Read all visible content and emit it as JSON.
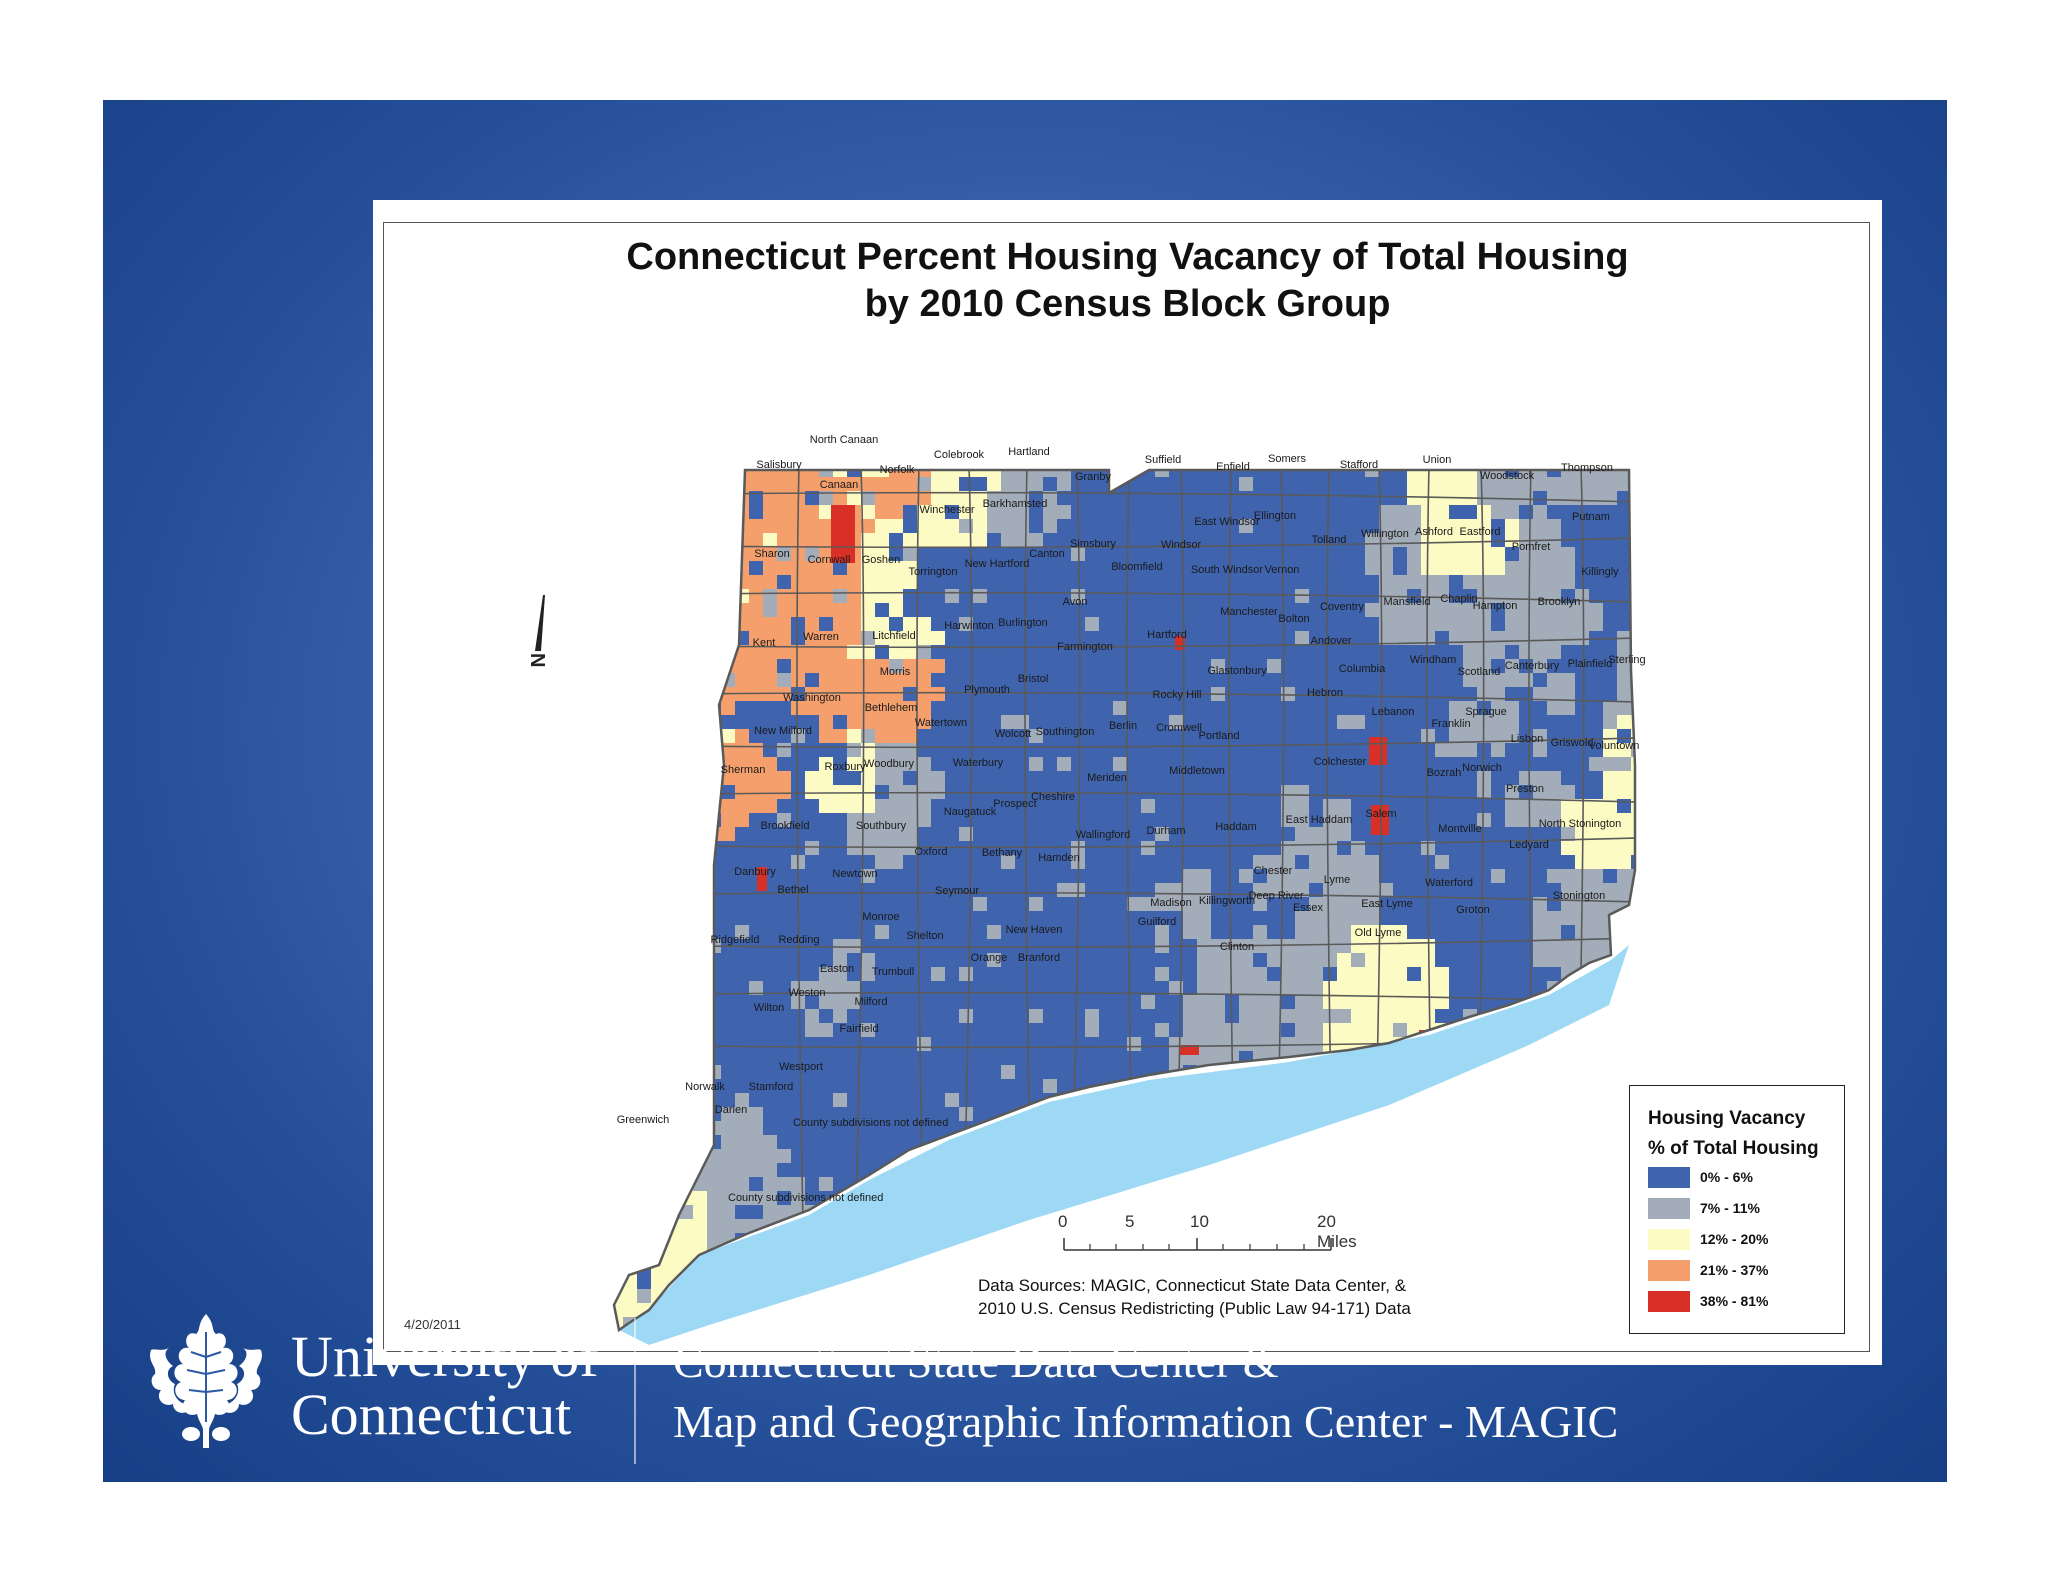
{
  "map": {
    "title_line1": "Connecticut Percent Housing Vacancy of Total Housing",
    "title_line2": "by 2010 Census Block Group",
    "north_label": "N",
    "date": "4/20/2011",
    "undefined_note": "County subdivisions not defined",
    "data_sources_line1": "Data Sources: MAGIC, Connecticut State Data Center, &",
    "data_sources_line2": "2010 U.S. Census Redistricting (Public Law 94-171) Data",
    "colors": {
      "water": "#9dd8f4",
      "border": "#5a5a5a",
      "c1": "#3f64ad",
      "c2": "#a3adb9",
      "c3": "#fdfbc4",
      "c4": "#f5a06c",
      "c5": "#d83027"
    },
    "towns": [
      {
        "name": "North Canaan",
        "class": 3
      },
      {
        "name": "Salisbury",
        "class": 4
      },
      {
        "name": "Canaan",
        "class": 4
      },
      {
        "name": "Norfolk",
        "class": 4
      },
      {
        "name": "Colebrook",
        "class": 3
      },
      {
        "name": "Hartland",
        "class": 2
      },
      {
        "name": "Granby",
        "class": 1
      },
      {
        "name": "Suffield",
        "class": 1
      },
      {
        "name": "Enfield",
        "class": 1
      },
      {
        "name": "Somers",
        "class": 1
      },
      {
        "name": "Stafford",
        "class": 1
      },
      {
        "name": "Union",
        "class": 3
      },
      {
        "name": "Woodstock",
        "class": 2
      },
      {
        "name": "Thompson",
        "class": 2
      },
      {
        "name": "Winchester",
        "class": 3
      },
      {
        "name": "Barkhamsted",
        "class": 2
      },
      {
        "name": "East Windsor",
        "class": 1
      },
      {
        "name": "Ellington",
        "class": 1
      },
      {
        "name": "Willington",
        "class": 2
      },
      {
        "name": "Ashford",
        "class": 3
      },
      {
        "name": "Eastford",
        "class": 3
      },
      {
        "name": "Putnam",
        "class": 1
      },
      {
        "name": "Sharon",
        "class": 4
      },
      {
        "name": "Cornwall",
        "class": 4
      },
      {
        "name": "Goshen",
        "class": 3
      },
      {
        "name": "Torrington",
        "class": 1
      },
      {
        "name": "New Hartford",
        "class": 1
      },
      {
        "name": "Canton",
        "class": 1
      },
      {
        "name": "Simsbury",
        "class": 1
      },
      {
        "name": "Windsor",
        "class": 1
      },
      {
        "name": "Bloomfield",
        "class": 1
      },
      {
        "name": "South Windsor",
        "class": 1
      },
      {
        "name": "Vernon",
        "class": 1
      },
      {
        "name": "Tolland",
        "class": 1
      },
      {
        "name": "Pomfret",
        "class": 2
      },
      {
        "name": "Killingly",
        "class": 1
      },
      {
        "name": "Kent",
        "class": 4
      },
      {
        "name": "Warren",
        "class": 4
      },
      {
        "name": "Litchfield",
        "class": 3
      },
      {
        "name": "Harwinton",
        "class": 1
      },
      {
        "name": "Burlington",
        "class": 1
      },
      {
        "name": "Avon",
        "class": 1
      },
      {
        "name": "Hartford",
        "class": 1
      },
      {
        "name": "Manchester",
        "class": 1
      },
      {
        "name": "Bolton",
        "class": 1
      },
      {
        "name": "Coventry",
        "class": 1
      },
      {
        "name": "Mansfield",
        "class": 2
      },
      {
        "name": "Chaplin",
        "class": 2
      },
      {
        "name": "Hampton",
        "class": 2
      },
      {
        "name": "Brooklyn",
        "class": 2
      },
      {
        "name": "Farmington",
        "class": 1
      },
      {
        "name": "Andover",
        "class": 1
      },
      {
        "name": "Windham",
        "class": 1
      },
      {
        "name": "Scotland",
        "class": 2
      },
      {
        "name": "Canterbury",
        "class": 2
      },
      {
        "name": "Plainfield",
        "class": 1
      },
      {
        "name": "Sterling",
        "class": 2
      },
      {
        "name": "Morris",
        "class": 4
      },
      {
        "name": "Bristol",
        "class": 1
      },
      {
        "name": "Plymouth",
        "class": 1
      },
      {
        "name": "Glastonbury",
        "class": 1
      },
      {
        "name": "Columbia",
        "class": 1
      },
      {
        "name": "Washington",
        "class": 4
      },
      {
        "name": "Bethlehem",
        "class": 4
      },
      {
        "name": "Rocky Hill",
        "class": 1
      },
      {
        "name": "Hebron",
        "class": 1
      },
      {
        "name": "Lebanon",
        "class": 1
      },
      {
        "name": "Sprague",
        "class": 2
      },
      {
        "name": "New Milford",
        "class": 1
      },
      {
        "name": "Watertown",
        "class": 1
      },
      {
        "name": "Wolcott",
        "class": 1
      },
      {
        "name": "Southington",
        "class": 1
      },
      {
        "name": "Berlin",
        "class": 1
      },
      {
        "name": "Cromwell",
        "class": 1
      },
      {
        "name": "Portland",
        "class": 1
      },
      {
        "name": "Franklin",
        "class": 2
      },
      {
        "name": "Lisbon",
        "class": 1
      },
      {
        "name": "Griswold",
        "class": 1
      },
      {
        "name": "Voluntown",
        "class": 3
      },
      {
        "name": "Sherman",
        "class": 4
      },
      {
        "name": "Roxbury",
        "class": 3
      },
      {
        "name": "Woodbury",
        "class": 2
      },
      {
        "name": "Waterbury",
        "class": 1
      },
      {
        "name": "Meriden",
        "class": 1
      },
      {
        "name": "Middletown",
        "class": 1
      },
      {
        "name": "Colchester",
        "class": 1
      },
      {
        "name": "Bozrah",
        "class": 1
      },
      {
        "name": "Norwich",
        "class": 1
      },
      {
        "name": "Preston",
        "class": 2
      },
      {
        "name": "Cheshire",
        "class": 1
      },
      {
        "name": "Prospect",
        "class": 1
      },
      {
        "name": "Naugatuck",
        "class": 1
      },
      {
        "name": "Brookfield",
        "class": 1
      },
      {
        "name": "Southbury",
        "class": 2
      },
      {
        "name": "Wallingford",
        "class": 1
      },
      {
        "name": "Durham",
        "class": 1
      },
      {
        "name": "Haddam",
        "class": 1
      },
      {
        "name": "East Haddam",
        "class": 2
      },
      {
        "name": "Salem",
        "class": 1
      },
      {
        "name": "Montville",
        "class": 1
      },
      {
        "name": "North Stonington",
        "class": 3
      },
      {
        "name": "Oxford",
        "class": 1
      },
      {
        "name": "Ledyard",
        "class": 1
      },
      {
        "name": "Danbury",
        "class": 1
      },
      {
        "name": "Bethany",
        "class": 1
      },
      {
        "name": "Hamden",
        "class": 1
      },
      {
        "name": "Newtown",
        "class": 1
      },
      {
        "name": "Chester",
        "class": 2
      },
      {
        "name": "Lyme",
        "class": 2
      },
      {
        "name": "Waterford",
        "class": 1
      },
      {
        "name": "Bethel",
        "class": 1
      },
      {
        "name": "Seymour",
        "class": 1
      },
      {
        "name": "Killingworth",
        "class": 1
      },
      {
        "name": "Deep River",
        "class": 1
      },
      {
        "name": "Stonington",
        "class": 2
      },
      {
        "name": "Madison",
        "class": 2
      },
      {
        "name": "Essex",
        "class": 2
      },
      {
        "name": "East Lyme",
        "class": 1
      },
      {
        "name": "Groton",
        "class": 1
      },
      {
        "name": "Monroe",
        "class": 1
      },
      {
        "name": "Guilford",
        "class": 1
      },
      {
        "name": "New Haven",
        "class": 1
      },
      {
        "name": "Old Lyme",
        "class": 3
      },
      {
        "name": "Ridgefield",
        "class": 1
      },
      {
        "name": "Redding",
        "class": 1
      },
      {
        "name": "Shelton",
        "class": 1
      },
      {
        "name": "Orange",
        "class": 1
      },
      {
        "name": "Clinton",
        "class": 2
      },
      {
        "name": "Branford",
        "class": 1
      },
      {
        "name": "Easton",
        "class": 2
      },
      {
        "name": "Trumbull",
        "class": 1
      },
      {
        "name": "Weston",
        "class": 2
      },
      {
        "name": "Milford",
        "class": 1
      },
      {
        "name": "Wilton",
        "class": 1
      },
      {
        "name": "Fairfield",
        "class": 1
      },
      {
        "name": "Westport",
        "class": 1
      },
      {
        "name": "Norwalk",
        "class": 1
      },
      {
        "name": "Stamford",
        "class": 1
      },
      {
        "name": "Darien",
        "class": 2
      },
      {
        "name": "Greenwich",
        "class": 3
      }
    ]
  },
  "legend": {
    "title_line1": "Housing Vacancy",
    "title_line2": "% of Total Housing",
    "items": [
      {
        "label": "0% - 6%",
        "color": "#3f64ad"
      },
      {
        "label": "7% - 11%",
        "color": "#a3adb9"
      },
      {
        "label": "12% - 20%",
        "color": "#fdfbc4"
      },
      {
        "label": "21% - 37%",
        "color": "#f5a06c"
      },
      {
        "label": "38% - 81%",
        "color": "#d83027"
      }
    ]
  },
  "scale": {
    "labels": [
      "0",
      "5",
      "10",
      "20 Miles"
    ]
  },
  "footer": {
    "university_line1": "University of",
    "university_line2": "Connecticut",
    "org_line1": "Connecticut State Data Center &",
    "org_line2": "Map and Geographic Information Center - MAGIC"
  }
}
